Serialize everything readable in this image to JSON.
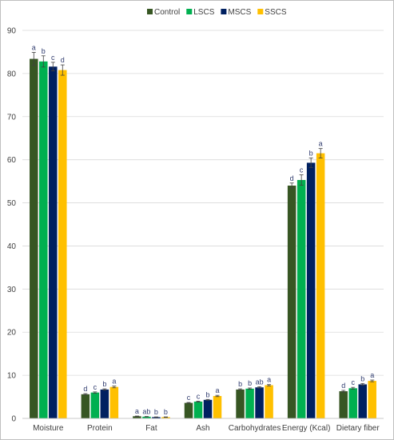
{
  "chart_data": {
    "type": "bar",
    "categories": [
      "Moisture",
      "Protein",
      "Fat",
      "Ash",
      "Carbohydrates",
      "Energy (Kcal)",
      "Dietary fiber"
    ],
    "ylim": [
      0,
      90
    ],
    "yticks": [
      0,
      10,
      20,
      30,
      40,
      50,
      60,
      70,
      80,
      90
    ],
    "grid": "horizontal",
    "legend_position": "top",
    "series": [
      {
        "name": "Control",
        "color": "#375623",
        "values": [
          83.4,
          5.6,
          0.5,
          3.6,
          6.7,
          54.0,
          6.3
        ],
        "errors": [
          1.5,
          0.15,
          0.05,
          0.1,
          0.15,
          0.6,
          0.2
        ],
        "letters": [
          "a",
          "d",
          "a",
          "c",
          "b",
          "d",
          "d"
        ]
      },
      {
        "name": "LSCS",
        "color": "#00b050",
        "values": [
          82.8,
          6.0,
          0.4,
          3.9,
          6.9,
          55.3,
          7.0
        ],
        "errors": [
          1.3,
          0.15,
          0.05,
          0.1,
          0.15,
          1.2,
          0.2
        ],
        "letters": [
          "b",
          "c",
          "ab",
          "c",
          "b",
          "c",
          "c"
        ]
      },
      {
        "name": "MSCS",
        "color": "#002060",
        "values": [
          81.6,
          6.7,
          0.3,
          4.3,
          7.2,
          59.3,
          7.9
        ],
        "errors": [
          1.0,
          0.15,
          0.05,
          0.1,
          0.15,
          1.1,
          0.2
        ],
        "letters": [
          "c",
          "b",
          "b",
          "b",
          "ab",
          "b",
          "b"
        ]
      },
      {
        "name": "SSCS",
        "color": "#ffc000",
        "values": [
          80.8,
          7.3,
          0.3,
          5.2,
          7.7,
          61.5,
          8.7
        ],
        "errors": [
          1.2,
          0.2,
          0.05,
          0.15,
          0.15,
          1.1,
          0.2
        ],
        "letters": [
          "d",
          "a",
          "b",
          "a",
          "a",
          "a",
          "a"
        ]
      }
    ]
  }
}
